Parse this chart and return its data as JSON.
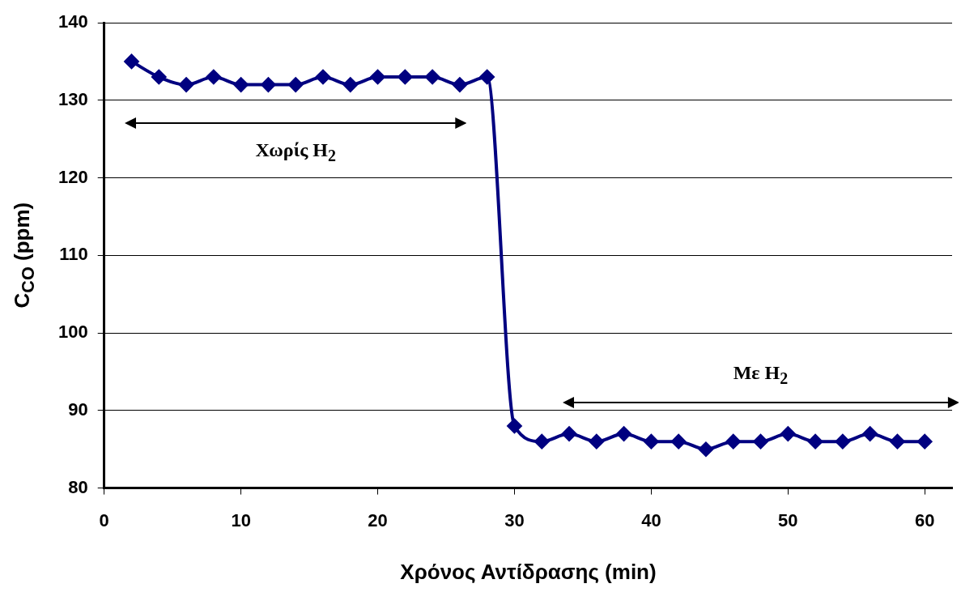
{
  "chart_data": {
    "type": "line",
    "xlabel": "Χρόνος Αντίδρασης (min)",
    "ylabel": "C$_{CO}$ (ppm)",
    "x": [
      2,
      4,
      6,
      8,
      10,
      12,
      14,
      16,
      18,
      20,
      22,
      24,
      26,
      28,
      30,
      32,
      34,
      36,
      38,
      40,
      42,
      44,
      46,
      48,
      50,
      52,
      54,
      56,
      58,
      60
    ],
    "series": [
      {
        "color": "#000080",
        "values": [
          135,
          133,
          132,
          133,
          132,
          132,
          132,
          133,
          132,
          133,
          133,
          133,
          132,
          133,
          88,
          86,
          87,
          86,
          87,
          86,
          86,
          85,
          86,
          86,
          87,
          86,
          86,
          87,
          86,
          86
        ]
      }
    ],
    "xlim": [
      0,
      62
    ],
    "xticks": [
      0,
      10,
      20,
      30,
      40,
      50,
      60
    ],
    "ylim": [
      80,
      140
    ],
    "yticks": [
      80,
      90,
      100,
      110,
      120,
      130,
      140
    ],
    "grid": "y",
    "legend": false,
    "marker": "diamond",
    "line_style": "solid",
    "annotations": [
      "Χωρίς H$_{2}$",
      "Με H$_{2}$"
    ]
  }
}
